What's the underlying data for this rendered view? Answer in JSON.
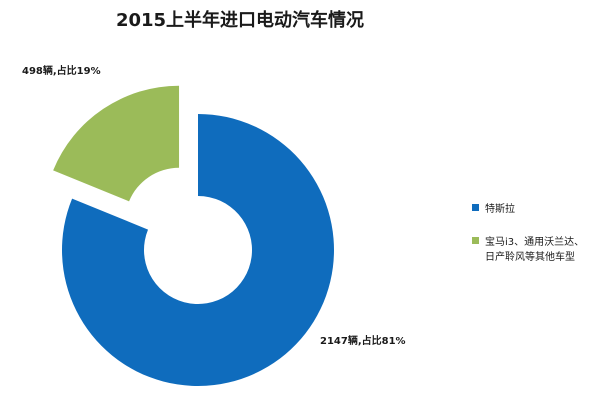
{
  "chart_data": {
    "type": "pie",
    "variant": "doughnut",
    "title": "2015上半年进口电动汽车情况",
    "categories": [
      "特斯拉",
      "宝马i3、通用沃兰达、日产聆风等其他车型"
    ],
    "legend_lines": [
      [
        "特斯拉"
      ],
      [
        "宝马i3、通用沃兰达、",
        "日产聆风等其他车型"
      ]
    ],
    "values": [
      2147,
      498
    ],
    "percents": [
      81,
      19
    ],
    "data_labels": [
      "2147辆,占比81%",
      "498辆,占比19%"
    ],
    "colors": [
      "#0f6cbd",
      "#9bbb59"
    ],
    "legend_position": "right"
  }
}
